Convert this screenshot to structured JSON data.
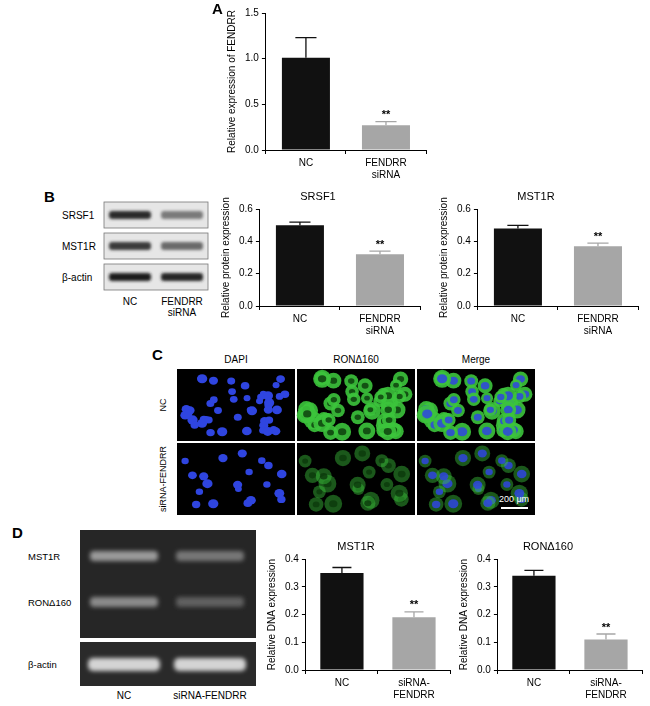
{
  "panel_letters": [
    "A",
    "B",
    "C",
    "D"
  ],
  "chart_data": [
    {
      "type": "bar",
      "y_label": "Relative expression of FENDRR",
      "categories": [
        "NC",
        "FENDRR siRNA"
      ],
      "values": [
        1.01,
        0.27
      ],
      "errors": [
        0.22,
        0.04
      ],
      "significance": [
        null,
        "**"
      ],
      "colors": [
        "#111111",
        "#a6a6a6"
      ],
      "ylim": [
        0,
        1.5
      ],
      "yticks": [
        {
          "value": 0,
          "label": "0.0"
        },
        0.5,
        {
          "value": 1,
          "label": "1.0"
        },
        1.5
      ],
      "grid": false
    },
    {
      "type": "bar",
      "title": "SRSF1",
      "y_label": "Relative protein expression",
      "categories": [
        "NC",
        "FENDRR siRNA"
      ],
      "values": [
        0.5,
        0.32
      ],
      "errors": [
        0.02,
        0.02
      ],
      "significance": [
        null,
        "**"
      ],
      "colors": [
        "#111111",
        "#a6a6a6"
      ],
      "ylim": [
        0,
        0.6
      ],
      "yticks": [
        {
          "value": 0,
          "label": "0.0"
        },
        0.2,
        0.4,
        0.6
      ],
      "grid": false
    },
    {
      "type": "bar",
      "title": "MST1R",
      "y_label": "Relative protein expression",
      "categories": [
        "NC",
        "FENDRR siRNA"
      ],
      "values": [
        0.48,
        0.37
      ],
      "errors": [
        0.02,
        0.02
      ],
      "significance": [
        null,
        "**"
      ],
      "colors": [
        "#111111",
        "#a6a6a6"
      ],
      "ylim": [
        0,
        0.6
      ],
      "yticks": [
        {
          "value": 0,
          "label": "0.0"
        },
        0.2,
        0.4,
        0.6
      ],
      "grid": false
    },
    {
      "type": "bar",
      "title": "MST1R",
      "y_label": "Relative DNA expression",
      "categories": [
        "NC",
        "siRNA-FENDRR"
      ],
      "values": [
        0.35,
        0.19
      ],
      "errors": [
        0.02,
        0.02
      ],
      "significance": [
        null,
        "**"
      ],
      "colors": [
        "#111111",
        "#a6a6a6"
      ],
      "ylim": [
        0,
        0.4
      ],
      "yticks": [
        {
          "value": 0,
          "label": "0.0"
        },
        0.1,
        0.2,
        0.3,
        0.4
      ],
      "grid": false
    },
    {
      "type": "bar",
      "title": "RONΔ160",
      "y_label": "Relative DNA expression",
      "categories": [
        "NC",
        "siRNA-FENDRR"
      ],
      "values": [
        0.34,
        0.11
      ],
      "errors": [
        0.02,
        0.02
      ],
      "significance": [
        null,
        "**"
      ],
      "colors": [
        "#111111",
        "#a6a6a6"
      ],
      "ylim": [
        0,
        0.4
      ],
      "yticks": [
        {
          "value": 0,
          "label": "0.0"
        },
        0.1,
        0.2,
        0.3,
        0.4
      ],
      "grid": false
    }
  ],
  "blot": {
    "rows": [
      "SRSF1",
      "MST1R",
      "β-actin"
    ],
    "lanes": [
      "NC",
      "FENDRR siRNA"
    ]
  },
  "micrographs": {
    "columns": [
      "DAPI",
      "RONΔ160",
      "Merge"
    ],
    "rows": [
      "NC",
      "siRNA-FENDRR"
    ],
    "scale_bar": "200 μm"
  },
  "gel": {
    "rows": [
      "MST1R",
      "RONΔ160"
    ],
    "control": "β-actin",
    "lanes": [
      "NC",
      "siRNA-FENDRR"
    ]
  }
}
